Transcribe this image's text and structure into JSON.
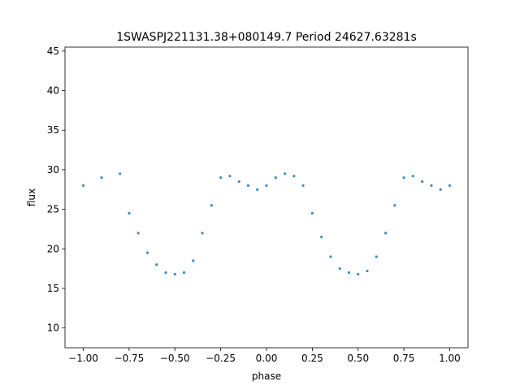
{
  "chart_data": {
    "type": "scatter",
    "title": "1SWASPJ221131.38+080149.7 Period 24627.63281s",
    "xlabel": "phase",
    "ylabel": "flux",
    "xlim": [
      -1.1,
      1.1
    ],
    "ylim": [
      7.5,
      45.5
    ],
    "xticks": [
      -1.0,
      -0.75,
      -0.5,
      -0.25,
      0.0,
      0.25,
      0.5,
      0.75,
      1.0
    ],
    "xtick_labels": [
      "−1.00",
      "−0.75",
      "−0.50",
      "−0.25",
      "0.00",
      "0.25",
      "0.50",
      "0.75",
      "1.00"
    ],
    "yticks": [
      10,
      15,
      20,
      25,
      30,
      35,
      40,
      45
    ],
    "ytick_labels": [
      "10",
      "15",
      "20",
      "25",
      "30",
      "35",
      "40",
      "45"
    ],
    "grid": false,
    "legend": "none",
    "marker_color": "#1f77b4",
    "series": [
      {
        "x": [
          -1.0,
          -0.9,
          -0.8,
          -0.75,
          -0.7,
          -0.65,
          -0.6,
          -0.55,
          -0.5,
          -0.45,
          -0.4,
          -0.35,
          -0.3,
          -0.25,
          -0.2,
          -0.15,
          -0.1,
          -0.05,
          0.0,
          0.05,
          0.1,
          0.15,
          0.2,
          0.25,
          0.3,
          0.35,
          0.4,
          0.45,
          0.5,
          0.55,
          0.6,
          0.65,
          0.7,
          0.75,
          0.8,
          0.85,
          0.9,
          0.95,
          1.0
        ],
        "y": [
          28.0,
          29.0,
          29.5,
          24.5,
          22.0,
          19.5,
          18.0,
          17.0,
          16.8,
          17.0,
          18.5,
          22.0,
          25.5,
          29.0,
          29.2,
          28.5,
          28.0,
          27.5,
          28.0,
          29.0,
          29.5,
          29.2,
          28.0,
          24.5,
          21.5,
          19.0,
          17.5,
          17.0,
          16.8,
          17.2,
          19.0,
          22.0,
          25.5,
          29.0,
          29.2,
          28.5,
          28.0,
          27.5,
          28.0
        ]
      }
    ]
  }
}
